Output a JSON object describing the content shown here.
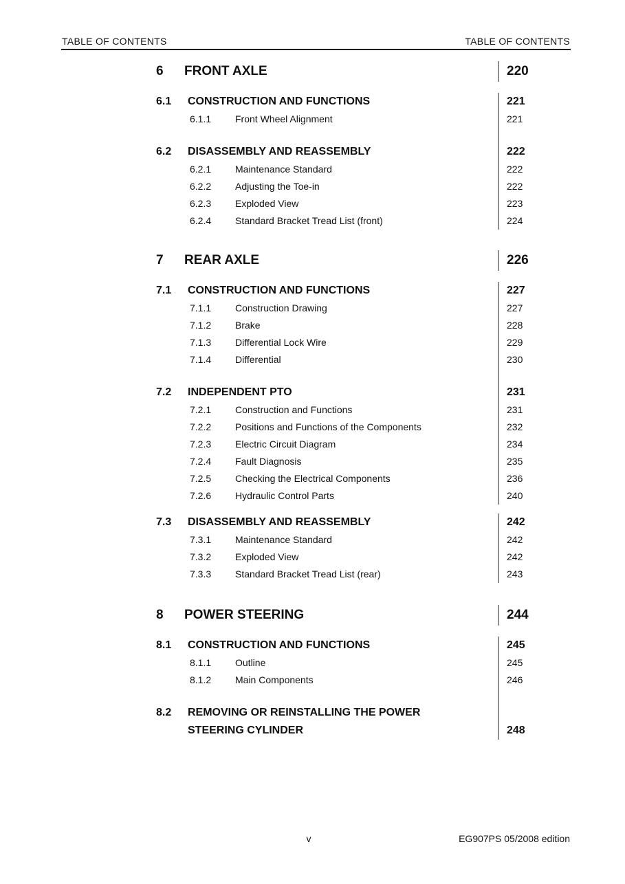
{
  "header": {
    "left": "TABLE OF CONTENTS",
    "right": "TABLE OF CONTENTS"
  },
  "footer": {
    "page_label": "v",
    "edition": "EG907PS 05/2008 edition"
  },
  "colors": {
    "page_number_rule_gray": "#8f8f8f",
    "header_rule_black": "#1c1c1c",
    "text": "#111111"
  },
  "toc": [
    {
      "number": "6",
      "title": "FRONT AXLE",
      "page": "220",
      "sections": [
        {
          "number": "6.1",
          "title": "CONSTRUCTION AND FUNCTIONS",
          "page": "221",
          "items": [
            {
              "number": "6.1.1",
              "title": "Front Wheel Alignment",
              "page": "221"
            }
          ]
        },
        {
          "number": "6.2",
          "title": "DISASSEMBLY AND REASSEMBLY",
          "page": "222",
          "items": [
            {
              "number": "6.2.1",
              "title": "Maintenance Standard",
              "page": "222"
            },
            {
              "number": "6.2.2",
              "title": "Adjusting the Toe-in",
              "page": "222"
            },
            {
              "number": "6.2.3",
              "title": "Exploded View",
              "page": "223"
            },
            {
              "number": "6.2.4",
              "title": "Standard Bracket Tread List (front)",
              "page": "224"
            }
          ]
        }
      ]
    },
    {
      "number": "7",
      "title": "REAR AXLE",
      "page": "226",
      "sections": [
        {
          "number": "7.1",
          "title": "CONSTRUCTION AND FUNCTIONS",
          "page": "227",
          "items": [
            {
              "number": "7.1.1",
              "title": "Construction Drawing",
              "page": "227"
            },
            {
              "number": "7.1.2",
              "title": "Brake",
              "page": "228"
            },
            {
              "number": "7.1.3",
              "title": "Differential Lock Wire",
              "page": "229"
            },
            {
              "number": "7.1.4",
              "title": "Differential",
              "page": "230"
            }
          ]
        },
        {
          "number": "7.2",
          "title": "INDEPENDENT PTO",
          "page": "231",
          "items": [
            {
              "number": "7.2.1",
              "title": "Construction and Functions",
              "page": "231"
            },
            {
              "number": "7.2.2",
              "title": "Positions and Functions of the Components",
              "page": "232"
            },
            {
              "number": "7.2.3",
              "title": "Electric Circuit Diagram",
              "page": "234"
            },
            {
              "number": "7.2.4",
              "title": "Fault Diagnosis",
              "page": "235"
            },
            {
              "number": "7.2.5",
              "title": "Checking the Electrical Components",
              "page": "236"
            },
            {
              "number": "7.2.6",
              "title": "Hydraulic Control Parts",
              "page": "240"
            }
          ]
        },
        {
          "number": "7.3",
          "title": "DISASSEMBLY AND REASSEMBLY",
          "page": "242",
          "rule_break_before": true,
          "items": [
            {
              "number": "7.3.1",
              "title": "Maintenance Standard",
              "page": "242"
            },
            {
              "number": "7.3.2",
              "title": "Exploded View",
              "page": "242"
            },
            {
              "number": "7.3.3",
              "title": "Standard Bracket Tread List (rear)",
              "page": "243"
            }
          ]
        }
      ]
    },
    {
      "number": "8",
      "title": "POWER STEERING",
      "page": "244",
      "sections": [
        {
          "number": "8.1",
          "title": "CONSTRUCTION AND FUNCTIONS",
          "page": "245",
          "items": [
            {
              "number": "8.1.1",
              "title": "Outline",
              "page": "245"
            },
            {
              "number": "8.1.2",
              "title": "Main Components",
              "page": "246"
            }
          ]
        },
        {
          "number": "8.2",
          "title": "REMOVING OR REINSTALLING THE POWER STEERING CYLINDER",
          "title_lines": [
            "REMOVING OR REINSTALLING THE POWER",
            "STEERING CYLINDER"
          ],
          "page": "248",
          "items": []
        }
      ]
    }
  ]
}
